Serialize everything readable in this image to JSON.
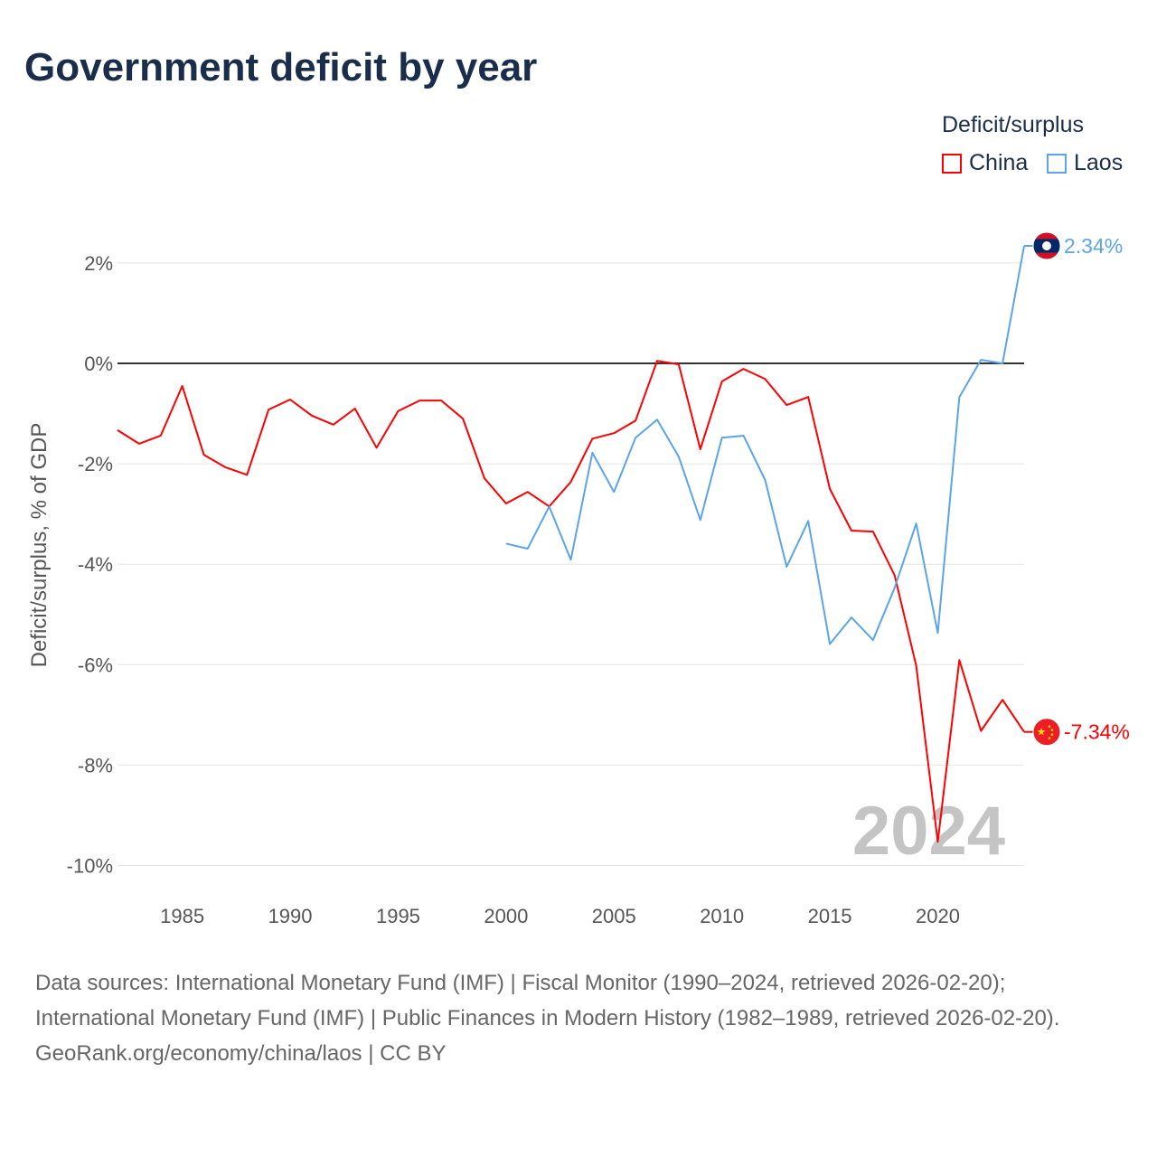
{
  "title": "Government deficit by year",
  "legend": {
    "title": "Deficit/surplus",
    "items": [
      {
        "label": "China",
        "color": "#ff0000"
      },
      {
        "label": "Laos",
        "color": "#5aa5ea"
      }
    ]
  },
  "year_watermark": "2024",
  "sources": {
    "line1": "Data sources: International Monetary Fund (IMF) | Fiscal Monitor (1990–2024, retrieved 2026-02-20); International Monetary Fund (IMF) | Public Finances in Modern History (1982–1989, retrieved 2026-02-20).",
    "line2": "GeoRank.org/economy/china/laos | CC BY"
  },
  "chart_data": {
    "type": "line",
    "title": "Government deficit by year",
    "xlabel": "",
    "ylabel": "Deficit/surplus, % of GDP",
    "xlim": [
      1982,
      2024
    ],
    "ylim": [
      -10,
      2.6
    ],
    "xticks": [
      1985,
      1990,
      1995,
      2000,
      2005,
      2010,
      2015,
      2020
    ],
    "yticks": [
      2,
      0,
      -2,
      -4,
      -6,
      -8,
      -10
    ],
    "ytick_labels": [
      "2%",
      "0%",
      "-2%",
      "-4%",
      "-6%",
      "-8%",
      "-10%"
    ],
    "grid": true,
    "legend_position": "top-right",
    "series": [
      {
        "name": "China",
        "color": "#ff0000",
        "end_label": "-7.34%",
        "flag": "china",
        "x": [
          1982,
          1983,
          1984,
          1985,
          1986,
          1987,
          1988,
          1989,
          1990,
          1991,
          1992,
          1993,
          1994,
          1995,
          1996,
          1997,
          1998,
          1999,
          2000,
          2001,
          2002,
          2003,
          2004,
          2005,
          2006,
          2007,
          2008,
          2009,
          2010,
          2011,
          2012,
          2013,
          2014,
          2015,
          2016,
          2017,
          2018,
          2019,
          2020,
          2021,
          2022,
          2023,
          2024
        ],
        "values": [
          -1.33,
          -1.6,
          -1.44,
          -0.45,
          -1.82,
          -2.07,
          -2.22,
          -0.92,
          -0.72,
          -1.04,
          -1.22,
          -0.9,
          -1.68,
          -0.95,
          -0.74,
          -0.74,
          -1.1,
          -2.29,
          -2.79,
          -2.56,
          -2.85,
          -2.36,
          -1.5,
          -1.39,
          -1.14,
          0.05,
          -0.02,
          -1.71,
          -0.36,
          -0.11,
          -0.31,
          -0.83,
          -0.67,
          -2.5,
          -3.33,
          -3.35,
          -4.22,
          -6.02,
          -9.53,
          -5.91,
          -7.32,
          -6.7,
          -7.34
        ]
      },
      {
        "name": "Laos",
        "color": "#5aa5ea",
        "end_label": "2.34%",
        "flag": "laos",
        "x": [
          2000,
          2001,
          2002,
          2003,
          2004,
          2005,
          2006,
          2007,
          2008,
          2009,
          2010,
          2011,
          2012,
          2013,
          2014,
          2015,
          2016,
          2017,
          2018,
          2019,
          2020,
          2021,
          2022,
          2023,
          2024
        ],
        "values": [
          -3.59,
          -3.69,
          -2.85,
          -3.91,
          -1.78,
          -2.56,
          -1.48,
          -1.12,
          -1.86,
          -3.12,
          -1.48,
          -1.44,
          -2.32,
          -4.05,
          -3.14,
          -5.59,
          -5.06,
          -5.51,
          -4.47,
          -3.19,
          -5.37,
          -0.67,
          0.07,
          0.0,
          2.34
        ]
      }
    ]
  }
}
